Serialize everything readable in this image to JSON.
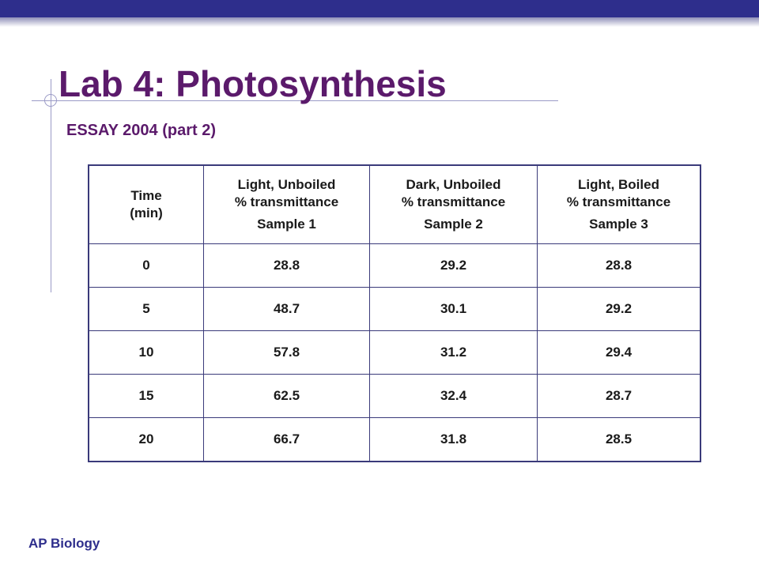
{
  "slide": {
    "title": "Lab 4: Photosynthesis",
    "subtitle": "ESSAY 2004 (part 2)",
    "footer": "AP Biology"
  },
  "table": {
    "headers": [
      {
        "line1": "Time",
        "line2": "(min)",
        "line3": ""
      },
      {
        "line1": "Light, Unboiled",
        "line2": "% transmittance",
        "line3": "Sample 1"
      },
      {
        "line1": "Dark, Unboiled",
        "line2": "% transmittance",
        "line3": "Sample 2"
      },
      {
        "line1": "Light, Boiled",
        "line2": "% transmittance",
        "line3": "Sample 3"
      }
    ],
    "rows": [
      [
        "0",
        "28.8",
        "29.2",
        "28.8"
      ],
      [
        "5",
        "48.7",
        "30.1",
        "29.2"
      ],
      [
        "10",
        "57.8",
        "31.2",
        "29.4"
      ],
      [
        "15",
        "62.5",
        "32.4",
        "28.7"
      ],
      [
        "20",
        "66.7",
        "31.8",
        "28.5"
      ]
    ]
  }
}
